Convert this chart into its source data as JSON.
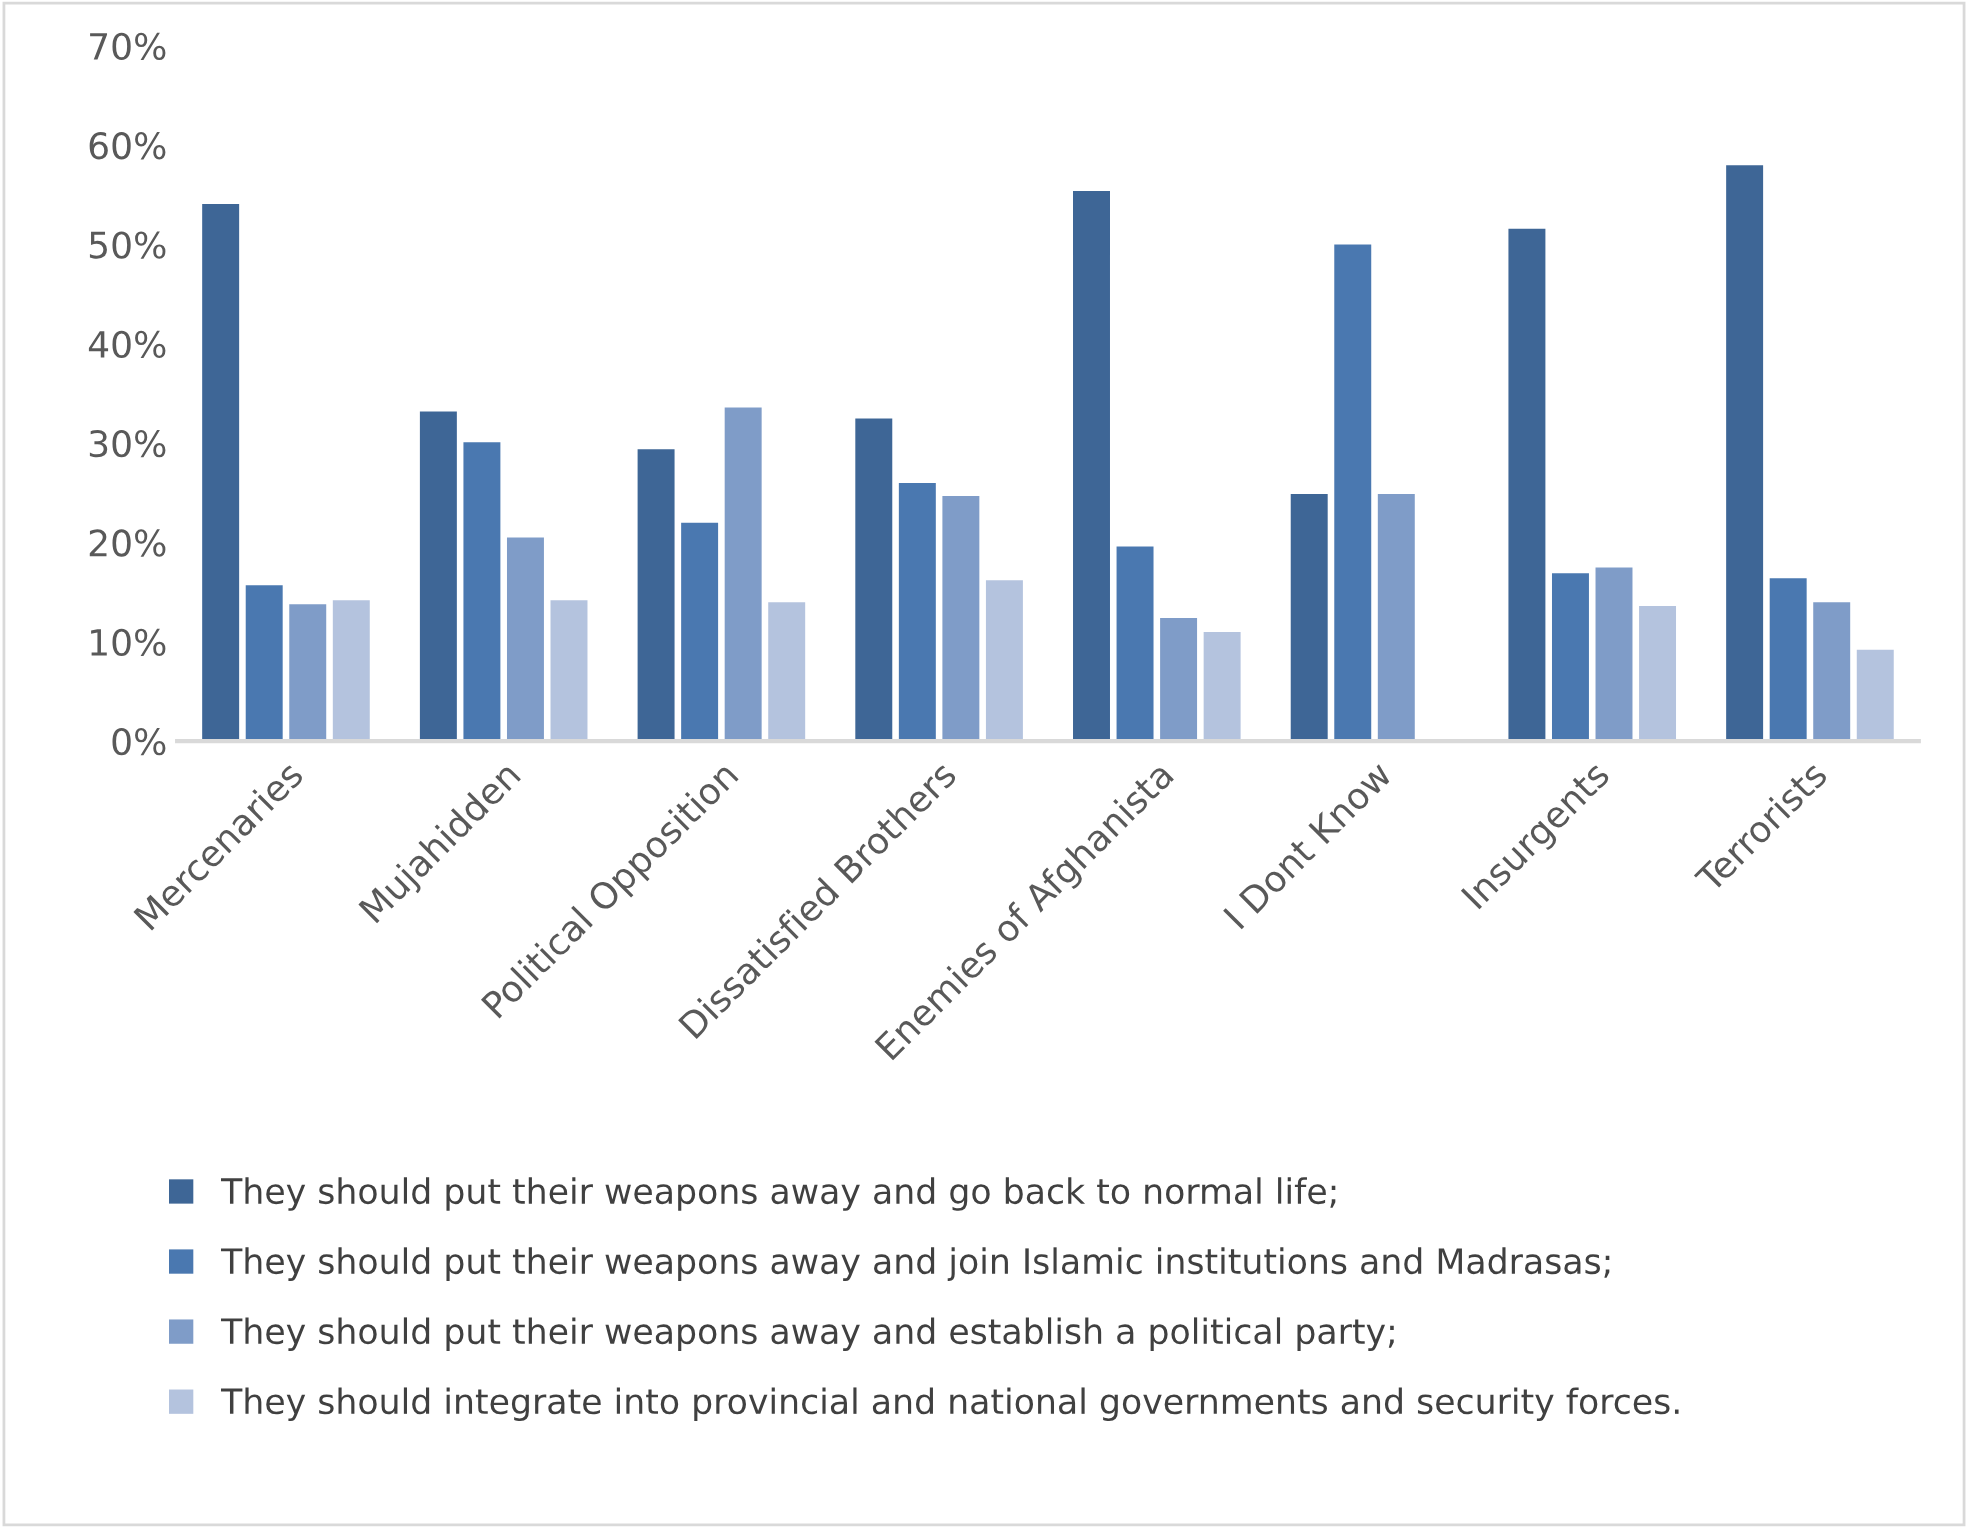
{
  "chart_data": {
    "type": "bar",
    "categories": [
      "Mercenaries",
      "Mujahidden",
      "Political Opposition",
      "Dissatisfied Brothers",
      "Enemies of Afghanista",
      "I Dont Know",
      "Insurgents",
      "Terrorists"
    ],
    "series": [
      {
        "name": "They should put their weapons away and go back to normal life;",
        "color": "#3e6696",
        "values": [
          54.2,
          33.3,
          29.5,
          32.6,
          55.5,
          25.0,
          51.7,
          58.1
        ]
      },
      {
        "name": "They should put their weapons away and join Islamic institutions and Madrasas;",
        "color": "#4a78b0",
        "values": [
          15.8,
          30.2,
          22.1,
          26.1,
          19.7,
          50.1,
          17.0,
          16.5
        ]
      },
      {
        "name": "They should put their weapons away and establish a political party;",
        "color": "#7f9cc8",
        "values": [
          13.9,
          20.6,
          33.7,
          24.8,
          12.5,
          25.0,
          17.6,
          14.1
        ]
      },
      {
        "name": "They should integrate into provincial and national governments and security forces.",
        "color": "#b4c3de",
        "values": [
          14.3,
          14.3,
          14.1,
          16.3,
          11.1,
          null,
          13.7,
          9.3
        ]
      }
    ],
    "ylim": [
      0,
      70
    ],
    "yticks": [
      {
        "value": 0,
        "label": "0%"
      },
      {
        "value": 10,
        "label": "10%"
      },
      {
        "value": 20,
        "label": "20%"
      },
      {
        "value": 30,
        "label": "30%"
      },
      {
        "value": 40,
        "label": "40%"
      },
      {
        "value": 50,
        "label": "50%"
      },
      {
        "value": 60,
        "label": "60%"
      },
      {
        "value": 70,
        "label": "70%"
      }
    ],
    "grid": false,
    "legend": "bottom"
  }
}
